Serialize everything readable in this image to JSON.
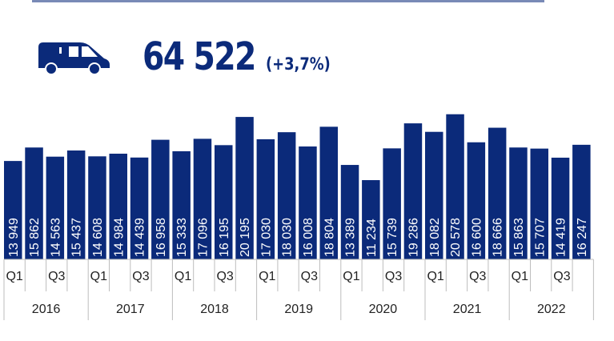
{
  "header": {
    "total": "64 522",
    "change": "(+3,7%)",
    "icon": "van-icon",
    "accent_color": "#0b2a7a"
  },
  "chart_data": {
    "type": "bar",
    "categories": [
      "2016 Q1",
      "2016 Q2",
      "2016 Q3",
      "2016 Q4",
      "2017 Q1",
      "2017 Q2",
      "2017 Q3",
      "2017 Q4",
      "2018 Q1",
      "2018 Q2",
      "2018 Q3",
      "2018 Q4",
      "2019 Q1",
      "2019 Q2",
      "2019 Q3",
      "2019 Q4",
      "2020 Q1",
      "2020 Q2",
      "2020 Q3",
      "2020 Q4",
      "2021 Q1",
      "2021 Q2",
      "2021 Q3",
      "2021 Q4",
      "2022 Q1",
      "2022 Q2",
      "2022 Q3",
      "2022 Q4"
    ],
    "values": [
      13949,
      15862,
      14563,
      15437,
      14608,
      14984,
      14439,
      16958,
      15333,
      17096,
      16195,
      20195,
      17030,
      18030,
      16008,
      18804,
      13389,
      11234,
      15739,
      19286,
      18082,
      20578,
      16600,
      18666,
      15863,
      15707,
      14419,
      16247
    ],
    "labels": [
      "13 949",
      "15 862",
      "14 563",
      "15 437",
      "14 608",
      "14 984",
      "14 439",
      "16 958",
      "15 333",
      "17 096",
      "16 195",
      "20 195",
      "17 030",
      "18 030",
      "16 008",
      "18 804",
      "13 389",
      "11 234",
      "15 739",
      "19 286",
      "18 082",
      "20 578",
      "16 600",
      "18 666",
      "15 863",
      "15 707",
      "14 419",
      "16 247"
    ],
    "years": [
      "2016",
      "2017",
      "2018",
      "2019",
      "2020",
      "2021",
      "2022"
    ],
    "quarter_ticks": [
      "Q1",
      "",
      "Q3",
      ""
    ],
    "bar_color": "#0b2a7a",
    "ylim": [
      0,
      21000
    ],
    "grid": false,
    "title": "",
    "xlabel": "",
    "ylabel": ""
  }
}
